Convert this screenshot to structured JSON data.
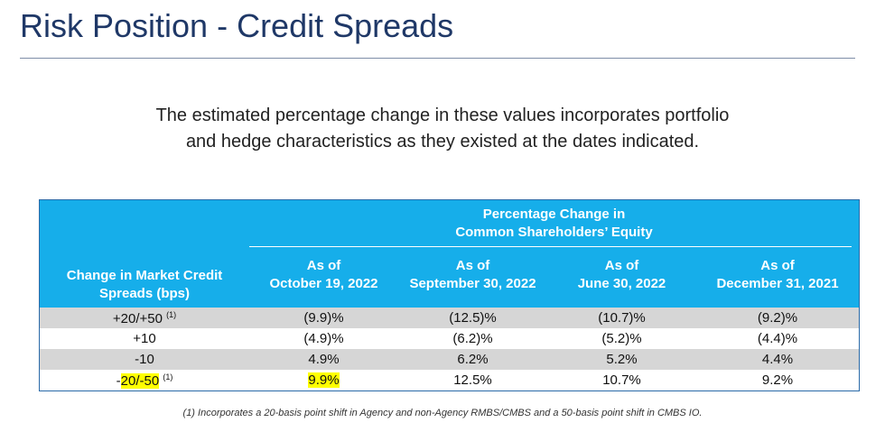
{
  "title": "Risk Position - Credit Spreads",
  "subtitle": {
    "line1": "The estimated percentage change in these values incorporates portfolio",
    "line2": "and hedge characteristics as they existed at the dates indicated."
  },
  "table": {
    "group_header": {
      "line1": "Percentage Change in",
      "line2": "Common Shareholders’ Equity"
    },
    "row_header": {
      "line1": "Change in Market Credit",
      "line2": "Spreads (bps)"
    },
    "columns": [
      {
        "line1": "As of",
        "line2": "October 19, 2022"
      },
      {
        "line1": "As of",
        "line2": "September 30, 2022"
      },
      {
        "line1": "As of",
        "line2": "June 30, 2022"
      },
      {
        "line1": "As of",
        "line2": "December 31, 2021"
      }
    ],
    "rows": [
      {
        "label": "+20/+50",
        "note": "(1)",
        "values": [
          "(9.9)%",
          "(12.5)%",
          "(10.7)%",
          "(9.2)%"
        ]
      },
      {
        "label": "+10",
        "note": "",
        "values": [
          "(4.9)%",
          "(6.2)%",
          "(5.2)%",
          "(4.4)%"
        ]
      },
      {
        "label": "-10",
        "note": "",
        "values": [
          "4.9%",
          "6.2%",
          "5.2%",
          "4.4%"
        ]
      },
      {
        "label_prefix": "-",
        "label": "20/-50",
        "note": "(1)",
        "values": [
          "9.9%",
          "12.5%",
          "10.7%",
          "9.2%"
        ]
      }
    ]
  },
  "footnote": "(1)  Incorporates a 20-basis point shift in Agency and non-Agency RMBS/CMBS and a 50-basis point shift in CMBS IO.",
  "colors": {
    "title": "#1f3867",
    "header_bg": "#16aeea",
    "shade_row": "#d6d6d6",
    "highlight": "#ffff00"
  }
}
